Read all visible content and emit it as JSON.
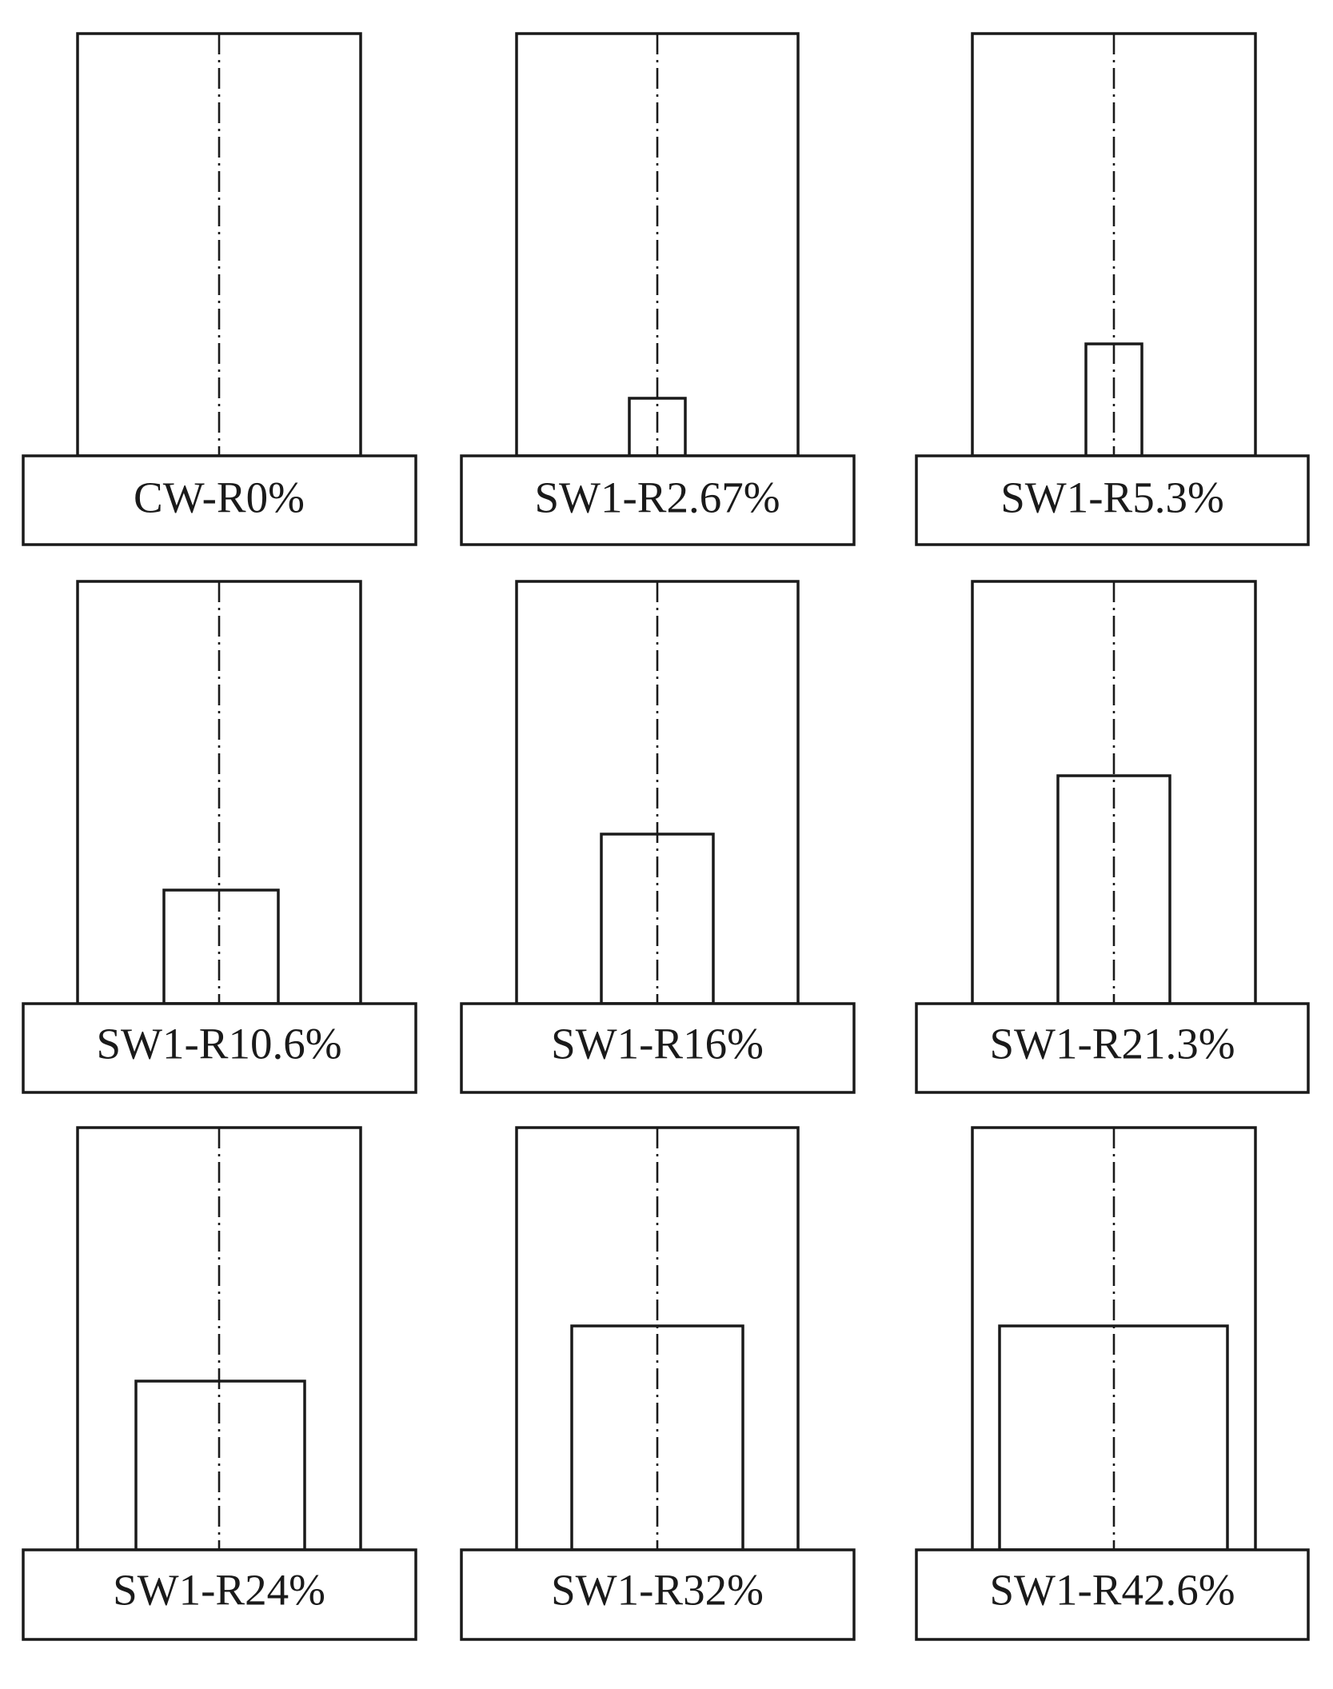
{
  "specimens": [
    {
      "label": "CW-R0%",
      "opening_ratio": 0
    },
    {
      "label": "SW1-R2.67%",
      "opening_ratio": 2.67
    },
    {
      "label": "SW1-R5.3%",
      "opening_ratio": 5.3
    },
    {
      "label": "SW1-R10.6%",
      "opening_ratio": 10.6
    },
    {
      "label": "SW1-R16%",
      "opening_ratio": 16
    },
    {
      "label": "SW1-R21.3%",
      "opening_ratio": 21.3
    },
    {
      "label": "SW1-R24%",
      "opening_ratio": 24
    },
    {
      "label": "SW1-R32%",
      "opening_ratio": 32
    },
    {
      "label": "SW1-R42.6%",
      "opening_ratio": 42.6
    }
  ]
}
